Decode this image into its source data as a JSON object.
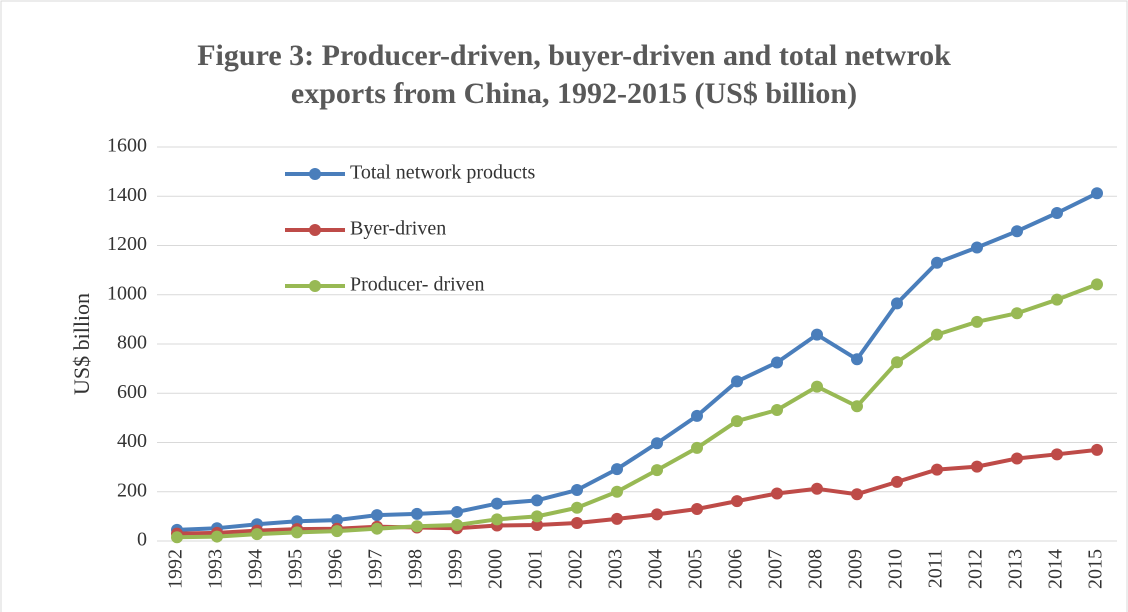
{
  "chart_data": {
    "type": "line",
    "title": [
      "Figure 3: Producer-driven, buyer-driven and total netwrok",
      "exports from China, 1992-2015 (US$ billion)"
    ],
    "ylabel": "US$ billion",
    "categories": [
      "1992",
      "1993",
      "1994",
      "1995",
      "1996",
      "1997",
      "1998",
      "1999",
      "2000",
      "2001",
      "2002",
      "2003",
      "2004",
      "2005",
      "2006",
      "2007",
      "2008",
      "2009",
      "2010",
      "2011",
      "2012",
      "2013",
      "2014",
      "2015"
    ],
    "series": [
      {
        "name": "Total network products",
        "color": "#4a7ebb",
        "values": [
          45,
          52,
          68,
          80,
          85,
          105,
          110,
          118,
          152,
          165,
          207,
          292,
          397,
          508,
          648,
          725,
          838,
          738,
          965,
          1130,
          1192,
          1258,
          1332,
          1412
        ]
      },
      {
        "name": "Byer-driven",
        "color": "#be4b48",
        "values": [
          30,
          33,
          42,
          48,
          50,
          58,
          55,
          52,
          63,
          65,
          73,
          90,
          108,
          130,
          162,
          193,
          212,
          190,
          240,
          290,
          302,
          335,
          352,
          370
        ]
      },
      {
        "name": "Producer- driven",
        "color": "#98b954",
        "values": [
          15,
          18,
          28,
          35,
          40,
          50,
          60,
          65,
          88,
          100,
          135,
          200,
          288,
          378,
          487,
          532,
          627,
          547,
          726,
          838,
          890,
          925,
          980,
          1042
        ]
      }
    ],
    "ylim": [
      0,
      1600
    ],
    "yticks": [
      0,
      200,
      400,
      600,
      800,
      1000,
      1200,
      1400,
      1600
    ],
    "grid": true
  }
}
